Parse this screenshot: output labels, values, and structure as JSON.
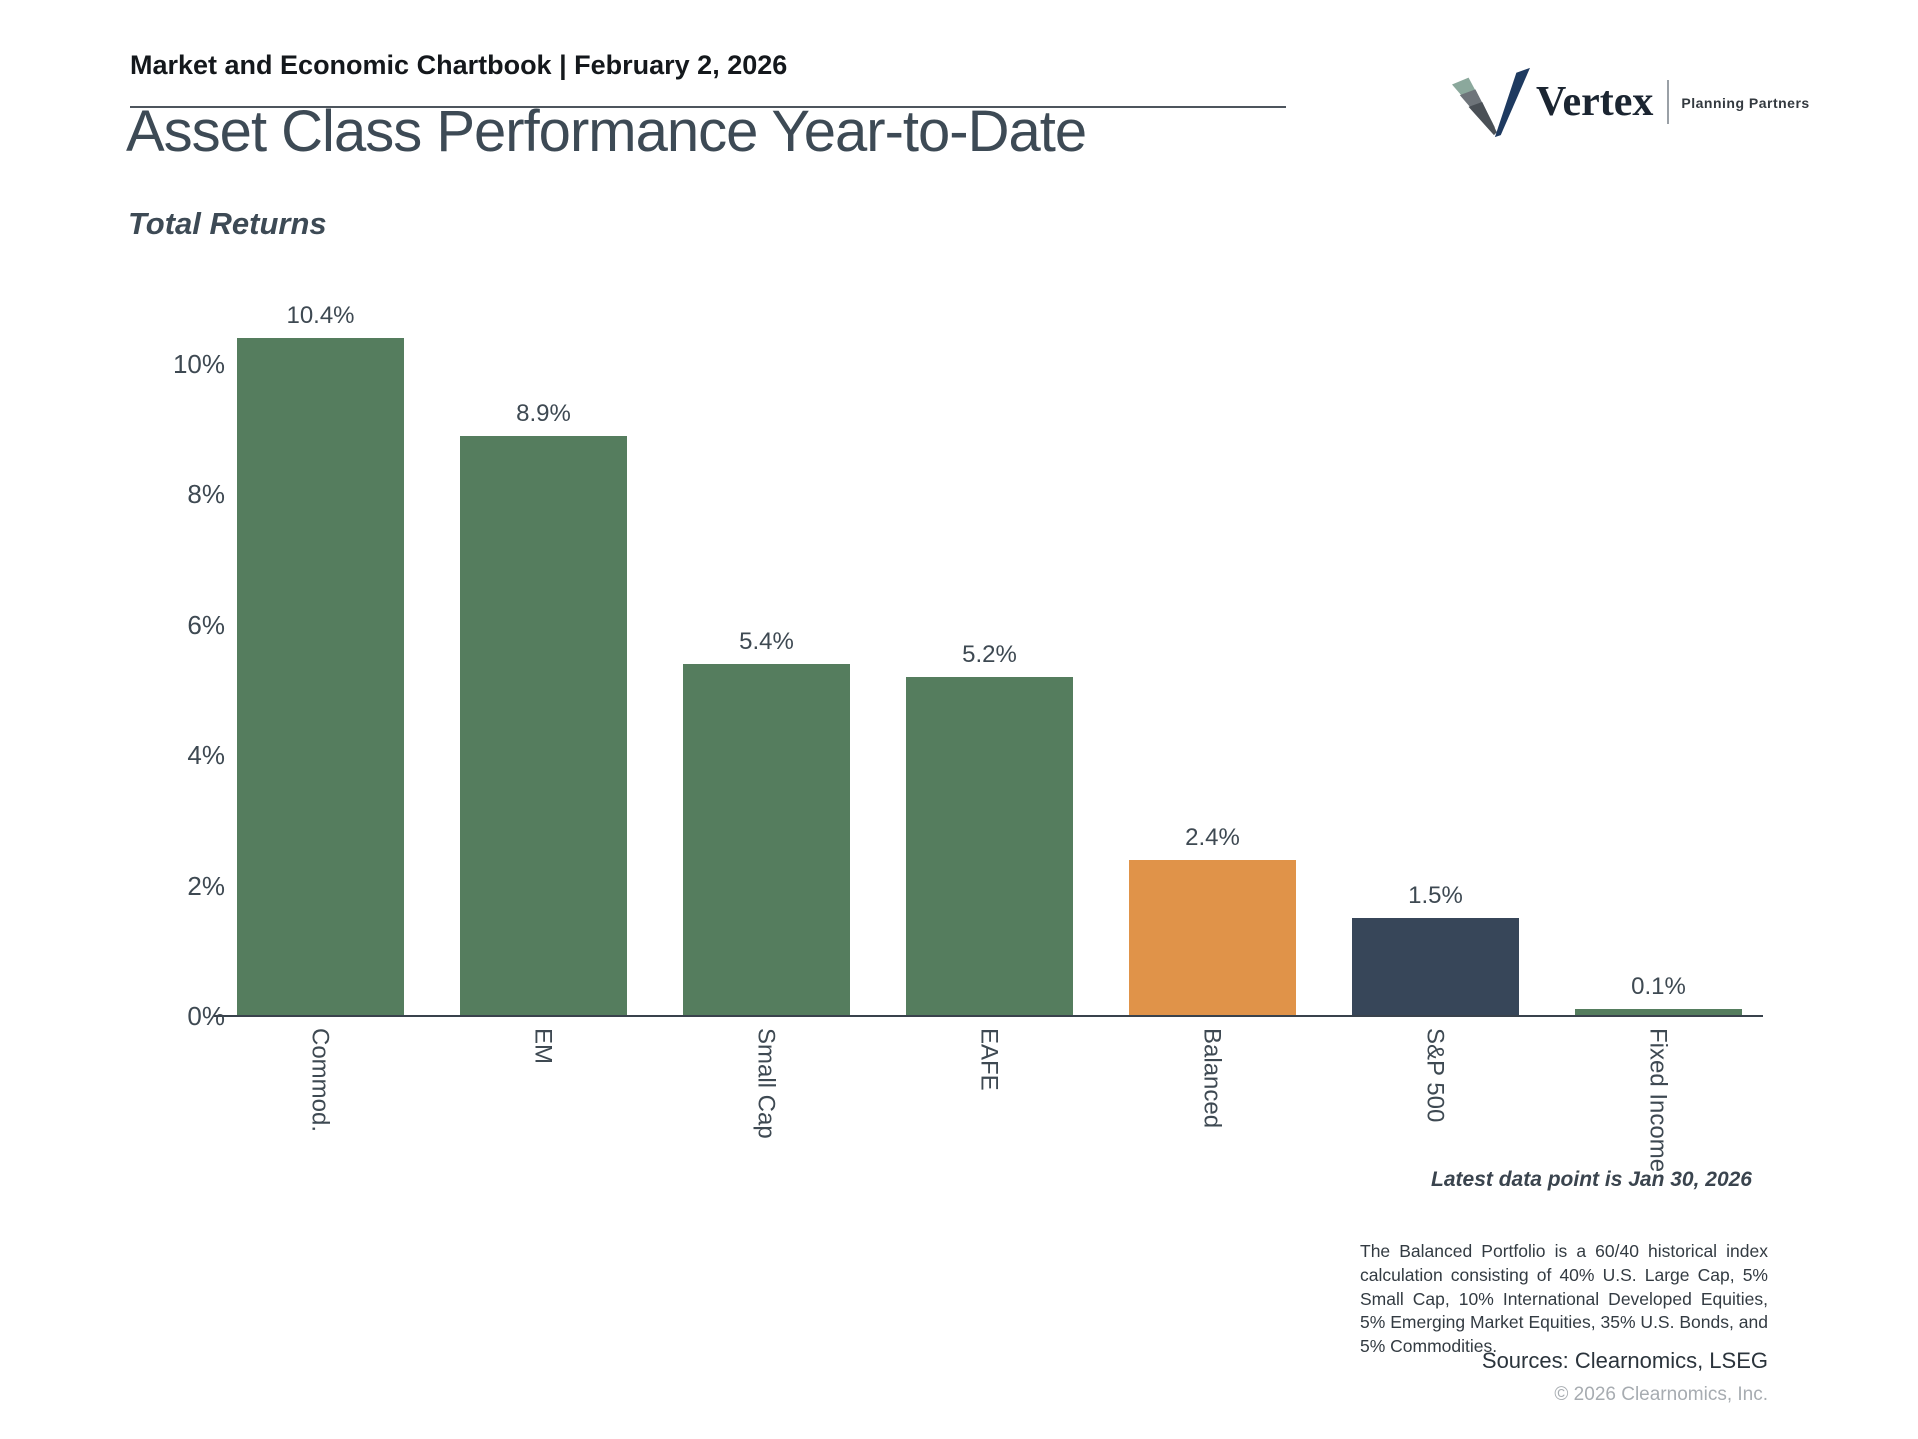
{
  "header": {
    "chartbook_label": "Market and Economic Chartbook | February 2, 2026"
  },
  "logo": {
    "brand": "Vertex",
    "tagline": "Planning Partners",
    "mark_colors": [
      "#8ba89c",
      "#6e747a",
      "#4a5056",
      "#1e3a60"
    ]
  },
  "chart_data": {
    "type": "bar",
    "title": "Asset Class Performance Year-to-Date",
    "subtitle": "Total Returns",
    "categories": [
      "Commod.",
      "EM",
      "Small Cap",
      "EAFE",
      "Balanced",
      "S&P 500",
      "Fixed Income"
    ],
    "values": [
      10.4,
      8.9,
      5.4,
      5.2,
      2.4,
      1.5,
      0.1
    ],
    "value_labels": [
      "10.4%",
      "8.9%",
      "5.4%",
      "5.2%",
      "2.4%",
      "1.5%",
      "0.1%"
    ],
    "bar_colors": [
      "#557d5e",
      "#557d5e",
      "#557d5e",
      "#557d5e",
      "#e09349",
      "#374659",
      "#557d5e"
    ],
    "xlabel": "",
    "ylabel": "",
    "ylim": [
      0,
      10.52
    ],
    "y_ticks": [
      0,
      2,
      4,
      6,
      8,
      10
    ],
    "y_tick_labels": [
      "0%",
      "2%",
      "4%",
      "6%",
      "8%",
      "10%"
    ],
    "grid": false,
    "legend": false,
    "x_tick_rotation_deg": 90
  },
  "footnotes": {
    "latest": "Latest data point is Jan 30, 2026",
    "balanced_note": "The Balanced Portfolio is a 60/40 historical index calculation consisting of 40% U.S. Large Cap, 5% Small Cap, 10% International Developed Equities, 5% Emerging Market Equities, 35% U.S. Bonds, and 5% Commodities.",
    "sources": "Sources: Clearnomics, LSEG",
    "copyright": "© 2026 Clearnomics, Inc."
  },
  "colors": {
    "title_text": "#3d4a55",
    "tick_text": "#3e4952",
    "axis_line": "#39424c",
    "positive_green": "#557d5e",
    "balanced_orange": "#e09349",
    "sp500_navy": "#374659",
    "muted_gray": "#a7acb1"
  }
}
